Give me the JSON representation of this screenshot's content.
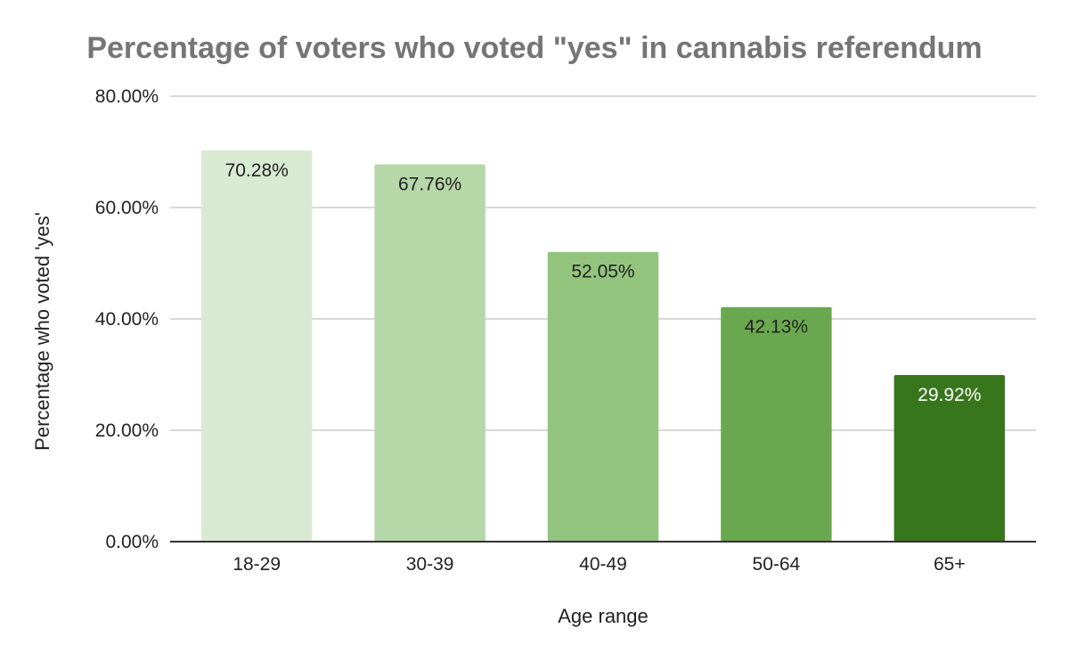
{
  "chart_data": {
    "type": "bar",
    "title": "Percentage of voters who voted \"yes\" in cannabis referendum",
    "xlabel": "Age range",
    "ylabel": "Percentage who voted 'yes'",
    "categories": [
      "18-29",
      "30-39",
      "40-49",
      "50-64",
      "65+"
    ],
    "values": [
      70.28,
      67.76,
      52.05,
      42.13,
      29.92
    ],
    "value_labels": [
      "70.28%",
      "67.76%",
      "52.05%",
      "42.13%",
      "29.92%"
    ],
    "bar_colors": [
      "#d9ead3",
      "#b6d7a8",
      "#93c47d",
      "#6aa84f",
      "#38761d"
    ],
    "label_colors": [
      "#222222",
      "#222222",
      "#222222",
      "#222222",
      "#ffffff"
    ],
    "ylim": [
      0,
      80
    ],
    "yticks": [
      0,
      20,
      40,
      60,
      80
    ],
    "ytick_labels": [
      "0.00%",
      "20.00%",
      "40.00%",
      "60.00%",
      "80.00%"
    ],
    "grid": true,
    "legend": "none"
  }
}
